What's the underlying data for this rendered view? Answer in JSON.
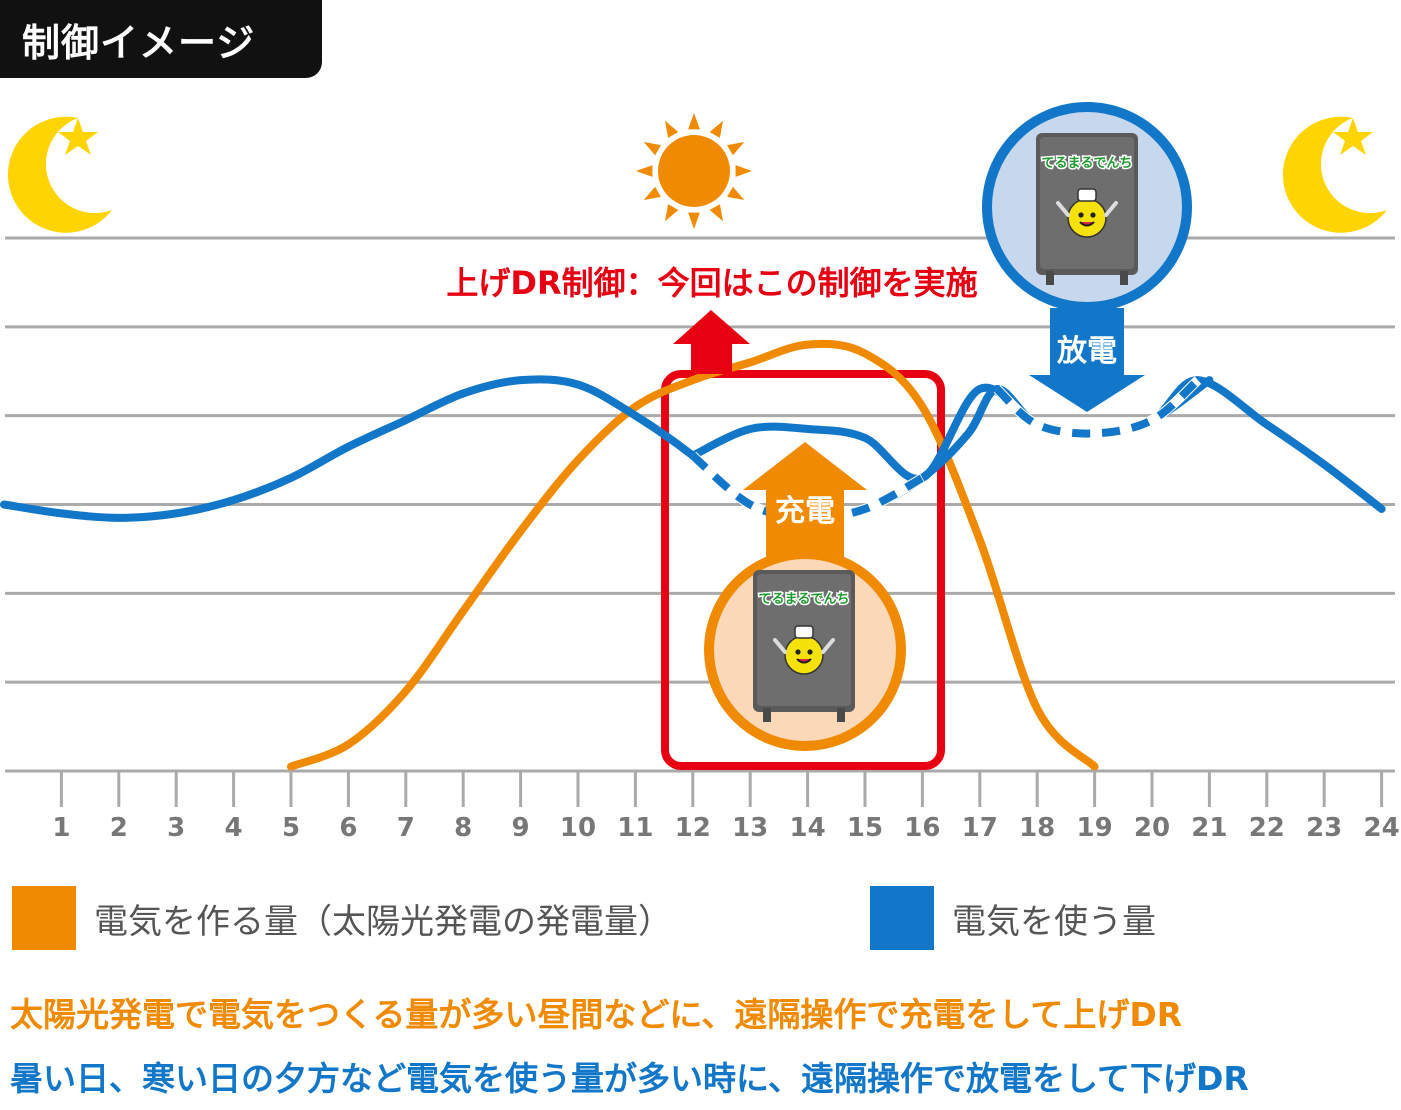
{
  "title": "制御イメージ",
  "colors": {
    "generation": "#F08A00",
    "usage": "#1277C8",
    "dr_red": "#E60012",
    "grid": "#AAAAAA",
    "moon": "#FFD400",
    "text_gray": "#555555"
  },
  "legend": [
    {
      "label": "電気を作る量（太陽光発電の発電量）",
      "color": "#F08A00"
    },
    {
      "label": "電気を使う量",
      "color": "#1277C8"
    }
  ],
  "annotations": {
    "dr_control": "上げDR制御：今回はこの制御を実施",
    "charge": "充電",
    "discharge": "放電",
    "battery_label_charge": "てるまるでんち",
    "battery_label_discharge": "てるまるでんち"
  },
  "notes": [
    {
      "text": "太陽光発電で電気をつくる量が多い昼間などに、遠隔操作で充電をして上げDR",
      "color": "#F08A00"
    },
    {
      "text": "暑い日、寒い日の夕方など電気を使う量が多い時に、遠隔操作で放電をして下げDR",
      "color": "#1277C8"
    }
  ],
  "icons": [
    "moon-star-icon",
    "sun-icon",
    "moon-star-icon",
    "battery-character-icon"
  ],
  "chart_data": {
    "type": "line",
    "x": [
      1,
      2,
      3,
      4,
      5,
      6,
      7,
      8,
      9,
      10,
      11,
      12,
      13,
      14,
      15,
      16,
      17,
      18,
      19,
      20,
      21,
      22,
      23,
      24
    ],
    "x_tick_labels": [
      "1",
      "2",
      "3",
      "4",
      "5",
      "6",
      "7",
      "8",
      "9",
      "10",
      "11",
      "12",
      "13",
      "14",
      "15",
      "16",
      "17",
      "18",
      "19",
      "20",
      "21",
      "22",
      "23",
      "24"
    ],
    "xlim": [
      0,
      24.2
    ],
    "ylim": [
      0,
      6
    ],
    "grid": true,
    "series": [
      {
        "role": "generation",
        "points": [
          [
            5,
            0.05
          ],
          [
            6,
            0.3
          ],
          [
            7,
            0.9
          ],
          [
            8,
            1.8
          ],
          [
            9,
            2.7
          ],
          [
            10,
            3.5
          ],
          [
            11,
            4.1
          ],
          [
            12,
            4.4
          ],
          [
            13,
            4.6
          ],
          [
            14,
            4.8
          ],
          [
            15,
            4.7
          ],
          [
            16,
            4.1
          ],
          [
            17,
            2.6
          ],
          [
            18,
            0.7
          ],
          [
            19,
            0.05
          ]
        ]
      },
      {
        "role": "usage",
        "points": [
          [
            0,
            3.0
          ],
          [
            1,
            2.9
          ],
          [
            2,
            2.85
          ],
          [
            3,
            2.9
          ],
          [
            4,
            3.05
          ],
          [
            5,
            3.3
          ],
          [
            6,
            3.65
          ],
          [
            7,
            3.95
          ],
          [
            8,
            4.25
          ],
          [
            9,
            4.4
          ],
          [
            10,
            4.35
          ],
          [
            11,
            4.0
          ],
          [
            12,
            3.55
          ],
          [
            13,
            3.0
          ],
          [
            14,
            2.85
          ],
          [
            15,
            2.95
          ],
          [
            16,
            3.3
          ],
          [
            16.8,
            3.8
          ],
          [
            17.3,
            4.3
          ],
          [
            18,
            3.9
          ],
          [
            19,
            3.8
          ],
          [
            20,
            3.95
          ],
          [
            20.8,
            4.4
          ],
          [
            22,
            3.9
          ],
          [
            23,
            3.45
          ],
          [
            24,
            2.95
          ]
        ]
      },
      {
        "role": "usage_after_control",
        "points": [
          [
            12,
            3.55
          ],
          [
            13,
            3.85
          ],
          [
            14,
            3.85
          ],
          [
            15,
            3.75
          ],
          [
            16,
            3.3
          ],
          [
            17,
            4.3
          ],
          [
            18,
            3.9
          ],
          [
            19,
            3.8
          ],
          [
            20,
            3.95
          ],
          [
            21,
            4.4
          ]
        ]
      }
    ],
    "highlight_window": [
      11.5,
      16.3
    ]
  }
}
